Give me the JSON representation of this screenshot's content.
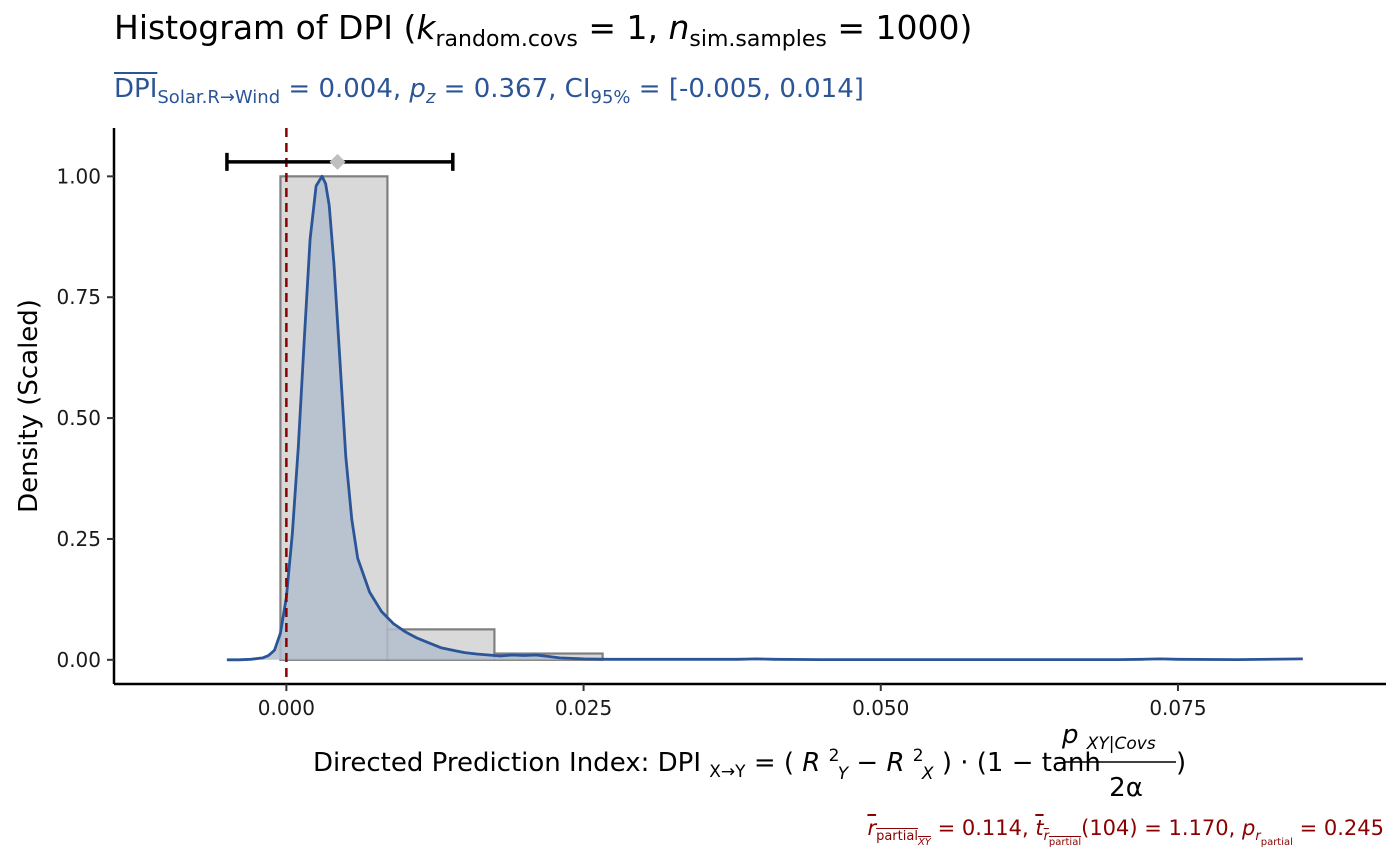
{
  "title": {
    "prefix": "Histogram of DPI (",
    "k_symbol": "k",
    "k_sub": "random.covs",
    "k_value": " = 1, ",
    "n_symbol": "n",
    "n_sub": "sim.samples",
    "n_value": " = 1000)"
  },
  "subtitle": {
    "dpi_symbol": "DPI",
    "dpi_sub": "Solar.R→Wind",
    "mean_text": " = 0.004, ",
    "p_symbol": "p",
    "p_sub": "z",
    "p_text": " = 0.367, CI",
    "ci_sub": "95%",
    "ci_text": " = [-0.005, 0.014]"
  },
  "caption": {
    "r_symbol": "r",
    "r_sub": "partial",
    "r_subsub": "XY",
    "r_text": " = 0.114, ",
    "t_symbol": "t",
    "t_sub": "r",
    "t_subsub": "partial",
    "t_text": "(104) = 1.170, ",
    "p_symbol": "p",
    "p_sub": "r",
    "p_subsub": "partial",
    "p_text": " = 0.245"
  },
  "colors": {
    "histogram_fill": "#D9D9D9",
    "histogram_stroke": "#7F7F7F",
    "density_line": "#2B5597",
    "density_fill": "#B3BDCC",
    "zero_line": "#8B0000",
    "ci_bar": "#000000",
    "mean_point": "#BFBFBF"
  },
  "chart_data": {
    "type": "histogram",
    "ylabel": "Density (Scaled)",
    "xlabel": {
      "prefix": "Directed Prediction Index: DPI",
      "prefix_sub": "X→Y",
      "eq": " = (",
      "r1": "R",
      "r1_sub": "Y",
      "r1_sup": "2",
      "minus": " − ",
      "r2": "R",
      "r2_sub": "X",
      "r2_sup": "2",
      "mid": ") · (1 − tanh",
      "numerator": "p",
      "numerator_sub": "XY|Covs",
      "denominator": "2α",
      "suffix": ")"
    },
    "xlim": [
      -0.0145,
      0.0925
    ],
    "ylim": [
      -0.05,
      1.1
    ],
    "x_ticks": [
      0.0,
      0.025,
      0.05,
      0.075
    ],
    "x_tick_labels": [
      "0.000",
      "0.025",
      "0.050",
      "0.075"
    ],
    "y_ticks": [
      0.0,
      0.25,
      0.5,
      0.75,
      1.0
    ],
    "y_tick_labels": [
      "0.00",
      "0.25",
      "0.50",
      "0.75",
      "1.00"
    ],
    "histogram_bins": [
      {
        "x0": -0.0095,
        "x1": -0.0005,
        "height": 0.0
      },
      {
        "x0": -0.0005,
        "x1": 0.0085,
        "height": 1.0
      },
      {
        "x0": 0.0085,
        "x1": 0.0175,
        "height": 0.063
      },
      {
        "x0": 0.0175,
        "x1": 0.0266,
        "height": 0.013
      },
      {
        "x0": 0.0266,
        "x1": 0.0356,
        "height": 0.0
      },
      {
        "x0": 0.0356,
        "x1": 0.0446,
        "height": 0.0
      },
      {
        "x0": 0.0446,
        "x1": 0.0536,
        "height": 0.0
      },
      {
        "x0": 0.0536,
        "x1": 0.0626,
        "height": 0.0
      },
      {
        "x0": 0.0626,
        "x1": 0.0716,
        "height": 0.0
      },
      {
        "x0": 0.0716,
        "x1": 0.0806,
        "height": 0.0
      },
      {
        "x0": 0.0806,
        "x1": 0.0896,
        "height": 0.0
      }
    ],
    "density_curve": {
      "x": [
        -0.005,
        -0.004,
        -0.003,
        -0.002,
        -0.0015,
        -0.001,
        -0.0005,
        0.0,
        0.0005,
        0.001,
        0.0015,
        0.002,
        0.0025,
        0.003,
        0.0033,
        0.0036,
        0.004,
        0.0045,
        0.005,
        0.0055,
        0.006,
        0.007,
        0.008,
        0.009,
        0.01,
        0.011,
        0.012,
        0.013,
        0.014,
        0.015,
        0.016,
        0.017,
        0.018,
        0.019,
        0.02,
        0.021,
        0.022,
        0.023,
        0.024,
        0.025,
        0.027,
        0.03,
        0.035,
        0.038,
        0.0395,
        0.041,
        0.045,
        0.05,
        0.06,
        0.07,
        0.072,
        0.0735,
        0.075,
        0.08,
        0.0855
      ],
      "y": [
        0.0,
        0.0,
        0.001,
        0.004,
        0.009,
        0.02,
        0.055,
        0.13,
        0.26,
        0.44,
        0.66,
        0.87,
        0.98,
        1.0,
        0.985,
        0.94,
        0.82,
        0.62,
        0.42,
        0.29,
        0.21,
        0.14,
        0.1,
        0.075,
        0.058,
        0.045,
        0.035,
        0.025,
        0.02,
        0.015,
        0.012,
        0.01,
        0.008,
        0.01,
        0.009,
        0.01,
        0.007,
        0.004,
        0.003,
        0.002,
        0.001,
        0.001,
        0.001,
        0.001,
        0.002,
        0.001,
        0.0005,
        0.0005,
        0.0005,
        0.0005,
        0.001,
        0.002,
        0.001,
        0.0005,
        0.002
      ]
    },
    "zero_line_x": 0.0,
    "ci": {
      "lower": -0.005,
      "upper": 0.014,
      "y": 1.03
    },
    "mean_point": {
      "x": 0.0043,
      "y": 1.03
    }
  }
}
